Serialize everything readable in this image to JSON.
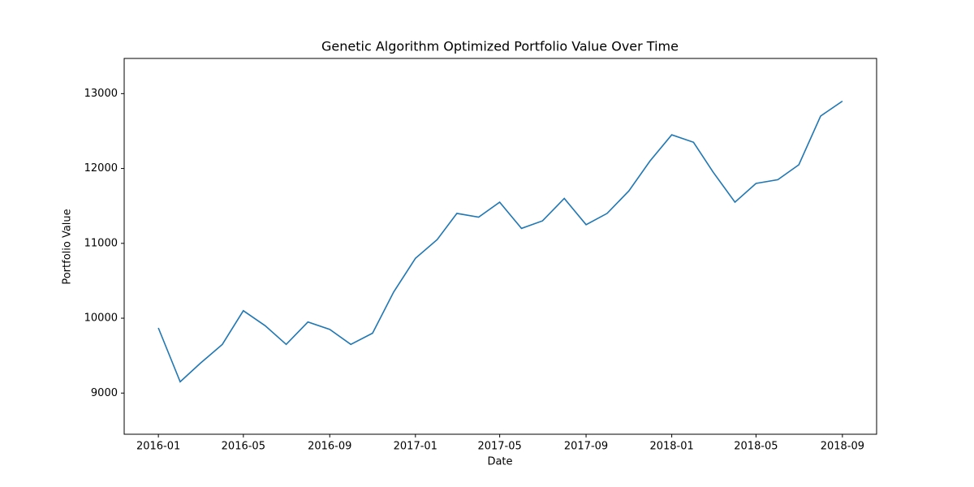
{
  "chart_data": {
    "type": "line",
    "title": "Genetic Algorithm Optimized Portfolio Value Over Time",
    "x_label": "Date",
    "y_label": "Portfolio Value",
    "x": [
      "2016-01",
      "2016-02",
      "2016-03",
      "2016-04",
      "2016-05",
      "2016-06",
      "2016-07",
      "2016-08",
      "2016-09",
      "2016-10",
      "2016-11",
      "2016-12",
      "2017-01",
      "2017-02",
      "2017-03",
      "2017-04",
      "2017-05",
      "2017-06",
      "2017-07",
      "2017-08",
      "2017-09",
      "2017-10",
      "2017-11",
      "2017-12",
      "2018-01",
      "2018-02",
      "2018-03",
      "2018-04",
      "2018-05",
      "2018-06",
      "2018-07",
      "2018-08",
      "2018-09"
    ],
    "series": [
      {
        "color": "#1f77b4",
        "values": [
          9870,
          9150,
          9400,
          9650,
          10100,
          9900,
          9650,
          9950,
          9850,
          9650,
          9800,
          10350,
          10800,
          11050,
          11400,
          11350,
          11550,
          11200,
          11300,
          11600,
          11250,
          11400,
          11700,
          12100,
          12450,
          12350,
          11950,
          11550,
          11800,
          11850,
          12050,
          12700,
          12900
        ]
      }
    ],
    "xticks": [
      "2016-01",
      "2016-05",
      "2016-09",
      "2017-01",
      "2017-05",
      "2017-09",
      "2018-01",
      "2018-05",
      "2018-09"
    ],
    "ylim": [
      8450,
      13470
    ],
    "yticks": [
      9000,
      10000,
      11000,
      12000,
      13000
    ]
  }
}
